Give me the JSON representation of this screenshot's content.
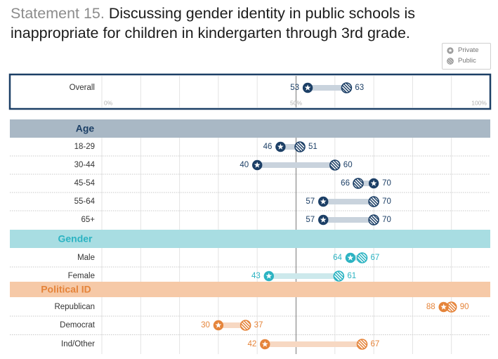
{
  "title": {
    "statement_label": "Statement 15.",
    "text": "Discussing gender identity in public schools is inappropriate for children in kindergarten through 3rd grade."
  },
  "legend": {
    "private_label": "Private",
    "public_label": "Public"
  },
  "colors": {
    "navy": "#1c3f66",
    "teal": "#2bb3c2",
    "orange": "#e5843a",
    "age_header_bg": "#a9b8c5",
    "gender_header_bg": "#a8dde2",
    "political_header_bg": "#f6c9a7",
    "navy_bar": "#c9d3dd",
    "teal_bar": "#cde9ec",
    "orange_bar": "#f7d8c2"
  },
  "chart_data": {
    "type": "dot-range",
    "title": "Discussing gender identity in public schools is inappropriate for children in kindergarten through 3rd grade.",
    "xlim": [
      0,
      100
    ],
    "ticks": [
      "0%",
      "50%",
      "100%"
    ],
    "legend": [
      "Private",
      "Public"
    ],
    "overall": {
      "label": "Overall",
      "private": 53,
      "public": 63
    },
    "groups": [
      {
        "name": "Age",
        "color": "navy",
        "rows": [
          {
            "label": "18-29",
            "private": 46,
            "public": 51
          },
          {
            "label": "30-44",
            "private": 40,
            "public": 60
          },
          {
            "label": "45-54",
            "private": 70,
            "public": 66
          },
          {
            "label": "55-64",
            "private": 57,
            "public": 70
          },
          {
            "label": "65+",
            "private": 57,
            "public": 70
          }
        ]
      },
      {
        "name": "Gender",
        "color": "teal",
        "rows": [
          {
            "label": "Male",
            "private": 64,
            "public": 67
          },
          {
            "label": "Female",
            "private": 43,
            "public": 61
          }
        ]
      },
      {
        "name": "Political ID",
        "color": "orange",
        "rows": [
          {
            "label": "Republican",
            "private": 88,
            "public": 90
          },
          {
            "label": "Democrat",
            "private": 30,
            "public": 37
          },
          {
            "label": "Ind/Other",
            "private": 42,
            "public": 67
          }
        ]
      }
    ]
  }
}
